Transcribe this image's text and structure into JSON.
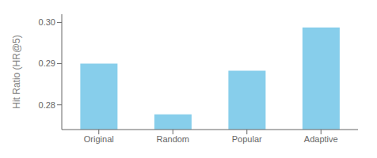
{
  "chart_data": {
    "type": "bar",
    "categories": [
      "Original",
      "Random",
      "Popular",
      "Adaptive"
    ],
    "values": [
      0.29,
      0.2777,
      0.2883,
      0.2988
    ],
    "color": "#87CEEB",
    "ylabel": "Hit Ratio (HR@5)",
    "ylim": [
      0.274,
      0.302
    ],
    "yticks": [
      0.28,
      0.29,
      {
        "value": 0.3,
        "label": "0.30"
      }
    ],
    "grid": false
  }
}
